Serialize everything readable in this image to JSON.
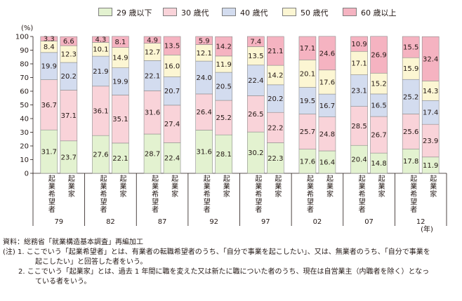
{
  "chart_data": {
    "type": "bar",
    "stacked": true,
    "percent": true,
    "y_unit": "(%)",
    "ylim": [
      0,
      100
    ],
    "yticks": [
      0,
      10,
      20,
      30,
      40,
      50,
      60,
      70,
      80,
      90,
      100
    ],
    "x_unit": "(年)",
    "bar_labels": [
      "起業希望者",
      "起業家"
    ],
    "groups": [
      "79",
      "82",
      "87",
      "92",
      "97",
      "02",
      "07",
      "12"
    ],
    "series": [
      {
        "name": "29 歳以下",
        "color": "#e3f2d0",
        "values": [
          [
            31.7,
            23.7
          ],
          [
            27.6,
            22.1
          ],
          [
            28.7,
            22.4
          ],
          [
            31.6,
            28.1
          ],
          [
            30.2,
            22.3
          ],
          [
            17.6,
            16.4
          ],
          [
            20.4,
            14.8
          ],
          [
            17.8,
            11.9
          ]
        ]
      },
      {
        "name": "30 歳代",
        "color": "#f9d3d9",
        "values": [
          [
            36.7,
            37.1
          ],
          [
            36.1,
            35.1
          ],
          [
            31.6,
            27.4
          ],
          [
            26.4,
            25.2
          ],
          [
            26.5,
            22.2
          ],
          [
            25.7,
            24.8
          ],
          [
            28.5,
            26.7
          ],
          [
            25.6,
            23.9
          ]
        ]
      },
      {
        "name": "40 歳代",
        "color": "#d3dcef",
        "values": [
          [
            19.9,
            20.2
          ],
          [
            21.9,
            19.9
          ],
          [
            22.1,
            20.7
          ],
          [
            24.0,
            20.5
          ],
          [
            22.4,
            20.2
          ],
          [
            19.5,
            16.7
          ],
          [
            23.1,
            16.5
          ],
          [
            25.2,
            17.4
          ]
        ]
      },
      {
        "name": "50 歳代",
        "color": "#fcf6d3",
        "values": [
          [
            8.4,
            12.3
          ],
          [
            10.1,
            14.9
          ],
          [
            12.7,
            16.0
          ],
          [
            12.1,
            11.9
          ],
          [
            13.5,
            14.2
          ],
          [
            20.1,
            17.6
          ],
          [
            17.1,
            15.2
          ],
          [
            15.9,
            14.3
          ]
        ]
      },
      {
        "name": "60 歳以上",
        "color": "#f5b3c1",
        "values": [
          [
            3.3,
            6.6
          ],
          [
            4.3,
            8.1
          ],
          [
            4.9,
            13.5
          ],
          [
            5.9,
            14.2
          ],
          [
            7.4,
            21.1
          ],
          [
            17.1,
            24.6
          ],
          [
            10.9,
            26.9
          ],
          [
            15.5,
            32.4
          ]
        ]
      }
    ]
  },
  "notes": {
    "source": "資料：総務省「就業構造基本調査」再編加工",
    "note1_line1": "(注) 1.  ここでいう「起業希望者」とは、有業者の転職希望者のうち、「自分で事業を起こしたい」、又は、無業者のうち、「自分で事業を",
    "note1_line2": "起こしたい」と回答した者をいう。",
    "note2_line1": "2.  ここでいう「起業家」とは、過去 1 年間に職を変えた又は新たに職についた者のうち、現在は自営業主（内職者を除く）となっ",
    "note2_line2": "ている者をいう。"
  }
}
